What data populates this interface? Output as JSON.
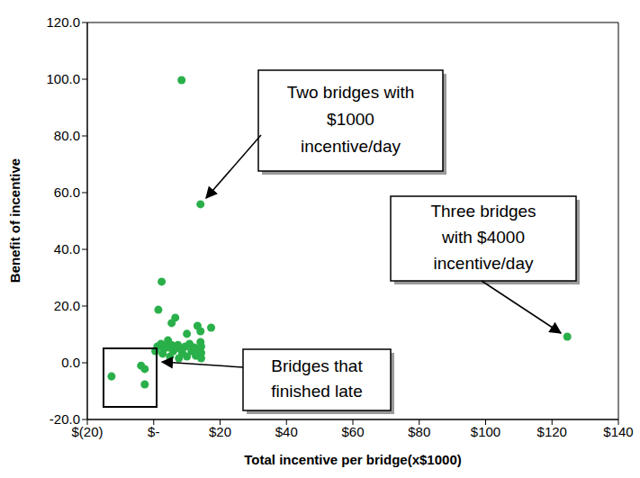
{
  "chart_data": {
    "type": "scatter",
    "x_label": "Total incentive per bridge(x$1000)",
    "y_label": "Benefit of incentive",
    "x": [
      8.4,
      14.1,
      124.6,
      -12.7,
      -3.8,
      -2.7,
      -2.7,
      2.4,
      1.4,
      6.5,
      5.4,
      17.3,
      13.2,
      14.1,
      10.0,
      0.5,
      1.1,
      2.2,
      3.0,
      3.8,
      4.6,
      5.4,
      5.9,
      6.5,
      7.3,
      8.1,
      8.6,
      9.5,
      10.0,
      10.8,
      11.4,
      12.2,
      13.5,
      14.1,
      14.3,
      14.3,
      14.3,
      4.9,
      7.6,
      2.7,
      4.3,
      12.7
    ],
    "values": [
      99.7,
      55.9,
      9.2,
      -4.8,
      -1.0,
      -2.2,
      -7.6,
      28.6,
      18.7,
      15.9,
      14.0,
      12.4,
      13.0,
      11.1,
      10.2,
      4.1,
      5.7,
      6.7,
      4.8,
      6.0,
      5.4,
      6.3,
      4.1,
      5.4,
      6.3,
      4.8,
      3.5,
      5.7,
      2.2,
      6.7,
      4.1,
      5.4,
      4.8,
      7.3,
      5.7,
      3.5,
      1.6,
      2.2,
      1.6,
      3.2,
      7.9,
      2.5
    ],
    "color": "#2ab04a",
    "marker": "circle",
    "grid": false,
    "xlim": [
      -20,
      140
    ],
    "ylim": [
      -20,
      120
    ],
    "xticks": [
      {
        "value": -20,
        "label": "$(20)"
      },
      {
        "value": 0,
        "label": "$-"
      },
      {
        "value": 20,
        "label": "$20"
      },
      {
        "value": 40,
        "label": "$40"
      },
      {
        "value": 60,
        "label": "$60"
      },
      {
        "value": 80,
        "label": "$80"
      },
      {
        "value": 100,
        "label": "$100"
      },
      {
        "value": 120,
        "label": "$120"
      },
      {
        "value": 140,
        "label": "$140"
      }
    ],
    "yticks": [
      {
        "value": -20,
        "label": "-20.0"
      },
      {
        "value": 0,
        "label": "0.0"
      },
      {
        "value": 20,
        "label": "20.0"
      },
      {
        "value": 40,
        "label": "40.0"
      },
      {
        "value": 60,
        "label": "60.0"
      },
      {
        "value": 80,
        "label": "80.0"
      },
      {
        "value": 100,
        "label": "100.0"
      },
      {
        "value": 120,
        "label": "120.0"
      }
    ],
    "annotations": [
      "Two bridges with\n$1000\nincentive/day",
      "Three bridges\nwith $4000\nincentive/day",
      "Bridges that\nfinished late"
    ]
  }
}
